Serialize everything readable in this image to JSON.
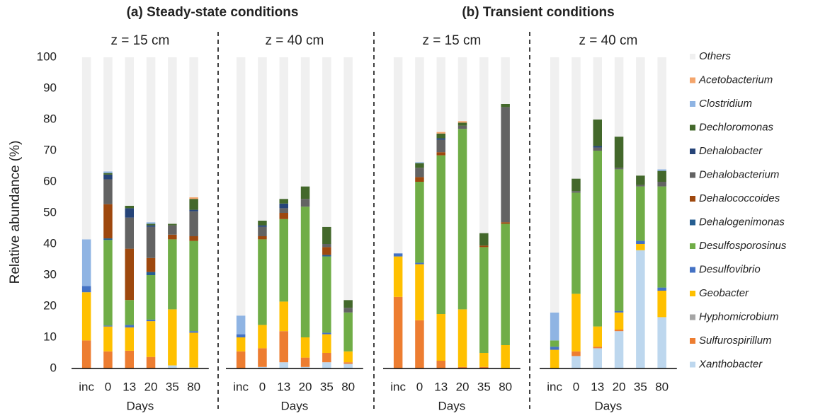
{
  "chart_data": {
    "type": "bar",
    "stacked": true,
    "ylabel": "Relative abundance (%)",
    "ylim": [
      0,
      100
    ],
    "yticks": [
      0,
      10,
      20,
      30,
      40,
      50,
      60,
      70,
      80,
      90,
      100
    ],
    "groups": [
      {
        "title": "(a) Steady-state conditions"
      },
      {
        "title": "(b) Transient conditions"
      }
    ],
    "series": [
      {
        "name": "Xanthobacter",
        "color": "#bdd7ee"
      },
      {
        "name": "Sulfurospirillum",
        "color": "#ed7d31"
      },
      {
        "name": "Hyphomicrobium",
        "color": "#a5a5a5"
      },
      {
        "name": "Geobacter",
        "color": "#ffc000"
      },
      {
        "name": "Desulfovibrio",
        "color": "#4472c4"
      },
      {
        "name": "Desulfosporosinus",
        "color": "#70ad47"
      },
      {
        "name": "Dehalogenimonas",
        "color": "#255e91"
      },
      {
        "name": "Dehalococcoides",
        "color": "#9e480e"
      },
      {
        "name": "Dehalobacterium",
        "color": "#636363"
      },
      {
        "name": "Dehalobacter",
        "color": "#264478"
      },
      {
        "name": "Dechloromonas",
        "color": "#43682b"
      },
      {
        "name": "Clostridium",
        "color": "#8fb4e3"
      },
      {
        "name": "Acetobacterium",
        "color": "#f4a56c"
      },
      {
        "name": "Others",
        "color": "#f0f0f0"
      }
    ],
    "panels": [
      {
        "subtitle": "z = 15 cm",
        "xlabel": "Days",
        "categories": [
          "inc",
          "0",
          "13",
          "20",
          "35",
          "80"
        ],
        "series": [
          {
            "values": [
              0,
              0,
              0,
              0,
              1,
              0.3
            ]
          },
          {
            "values": [
              9,
              5.5,
              5.7,
              3.7,
              0,
              0
            ]
          },
          {
            "values": [
              0,
              0,
              0,
              0,
              0,
              0
            ]
          },
          {
            "values": [
              15.5,
              8,
              7.5,
              11.5,
              18,
              11.2
            ]
          },
          {
            "values": [
              2,
              0.3,
              0.8,
              0.5,
              0,
              0.5
            ]
          },
          {
            "values": [
              0,
              27.5,
              8,
              14.3,
              22.5,
              29
            ]
          },
          {
            "values": [
              0,
              0.5,
              0,
              1,
              0,
              0
            ]
          },
          {
            "values": [
              0,
              11,
              16.5,
              4.5,
              1.5,
              1.5
            ]
          },
          {
            "values": [
              0,
              8,
              10,
              10,
              3,
              8
            ]
          },
          {
            "values": [
              0,
              1.5,
              3,
              0.5,
              0,
              0.5
            ]
          },
          {
            "values": [
              0,
              0.5,
              0.8,
              0.5,
              0.5,
              3.5
            ]
          },
          {
            "values": [
              15,
              0.5,
              0,
              0.5,
              0,
              0
            ]
          },
          {
            "values": [
              0,
              0,
              0,
              0,
              0,
              0.5
            ]
          },
          {
            "values": [
              58.5,
              36.7,
              47.7,
              53,
              53.5,
              45
            ]
          }
        ]
      },
      {
        "subtitle": "z = 40 cm",
        "xlabel": "Days",
        "categories": [
          "inc",
          "0",
          "13",
          "20",
          "35",
          "80"
        ],
        "series": [
          {
            "values": [
              0,
              0.5,
              2,
              0.5,
              2,
              1.5
            ]
          },
          {
            "values": [
              5.5,
              6,
              10,
              3,
              3,
              0.5
            ]
          },
          {
            "values": [
              0,
              0,
              0,
              0,
              0,
              0
            ]
          },
          {
            "values": [
              4.5,
              7.5,
              9.5,
              6.5,
              6,
              3.5
            ]
          },
          {
            "values": [
              1,
              0,
              0,
              0,
              0.5,
              0
            ]
          },
          {
            "values": [
              0,
              27.5,
              26.5,
              42,
              24.5,
              12.5
            ]
          },
          {
            "values": [
              0,
              0,
              0,
              0,
              0.5,
              0
            ]
          },
          {
            "values": [
              0,
              1,
              2,
              0,
              2.5,
              0
            ]
          },
          {
            "values": [
              0,
              3,
              1.5,
              2.5,
              1,
              1.5
            ]
          },
          {
            "values": [
              0,
              0.5,
              1.5,
              0,
              0,
              0
            ]
          },
          {
            "values": [
              0,
              1.5,
              1.5,
              4,
              5.5,
              2.5
            ]
          },
          {
            "values": [
              6,
              0,
              0,
              0,
              0,
              0
            ]
          },
          {
            "values": [
              0,
              0,
              0,
              0,
              0,
              0
            ]
          },
          {
            "values": [
              83,
              52.5,
              45.5,
              41.5,
              54.5,
              78
            ]
          }
        ]
      },
      {
        "subtitle": "z = 15 cm",
        "xlabel": "Days",
        "categories": [
          "inc",
          "0",
          "13",
          "20",
          "35",
          "80"
        ],
        "series": [
          {
            "values": [
              0,
              0,
              0,
              0,
              0,
              0
            ]
          },
          {
            "values": [
              23,
              15.5,
              2.5,
              0.5,
              0.5,
              0
            ]
          },
          {
            "values": [
              0,
              0,
              0,
              0,
              0,
              0
            ]
          },
          {
            "values": [
              13,
              18,
              15,
              18.5,
              4.5,
              7.5
            ]
          },
          {
            "values": [
              1,
              0.5,
              0,
              0,
              0,
              0
            ]
          },
          {
            "values": [
              0,
              26,
              51,
              58,
              34,
              39
            ]
          },
          {
            "values": [
              0,
              0,
              0,
              0,
              0,
              0
            ]
          },
          {
            "values": [
              0,
              1.5,
              1,
              0,
              0.5,
              0.5
            ]
          },
          {
            "values": [
              0,
              3,
              4,
              1,
              0,
              37
            ]
          },
          {
            "values": [
              0,
              0,
              0.5,
              0,
              0,
              0
            ]
          },
          {
            "values": [
              0,
              1.5,
              1.5,
              1,
              4,
              1
            ]
          },
          {
            "values": [
              0,
              0.3,
              0,
              0,
              0,
              0
            ]
          },
          {
            "values": [
              0,
              0,
              0.5,
              0.5,
              0,
              0
            ]
          },
          {
            "values": [
              63,
              33.7,
              24,
              20.5,
              56.5,
              15
            ]
          }
        ]
      },
      {
        "subtitle": "z = 40 cm",
        "xlabel": "Days",
        "categories": [
          "inc",
          "0",
          "13",
          "20",
          "35",
          "80"
        ],
        "series": [
          {
            "values": [
              0,
              4,
              6.5,
              12,
              38,
              16.5
            ]
          },
          {
            "values": [
              0,
              1.5,
              0.5,
              0.5,
              0,
              0
            ]
          },
          {
            "values": [
              0,
              0,
              0,
              0,
              0,
              0
            ]
          },
          {
            "values": [
              6,
              18.5,
              6.5,
              5.5,
              2,
              8.5
            ]
          },
          {
            "values": [
              1,
              0,
              0,
              0.5,
              1,
              1
            ]
          },
          {
            "values": [
              2,
              32.5,
              56.5,
              45.5,
              17.5,
              32.5
            ]
          },
          {
            "values": [
              0,
              0,
              0,
              0,
              0,
              0
            ]
          },
          {
            "values": [
              0,
              0,
              0,
              0,
              0,
              0
            ]
          },
          {
            "values": [
              0,
              0.5,
              1,
              0.5,
              0.5,
              1.5
            ]
          },
          {
            "values": [
              0,
              0,
              0.5,
              0,
              0,
              0
            ]
          },
          {
            "values": [
              0,
              4,
              8.5,
              10,
              3,
              3.5
            ]
          },
          {
            "values": [
              9,
              0,
              0,
              0,
              0,
              0.5
            ]
          },
          {
            "values": [
              0,
              0,
              0,
              0,
              0,
              0
            ]
          },
          {
            "values": [
              82,
              39,
              20,
              25.5,
              38,
              36
            ]
          }
        ]
      }
    ]
  }
}
